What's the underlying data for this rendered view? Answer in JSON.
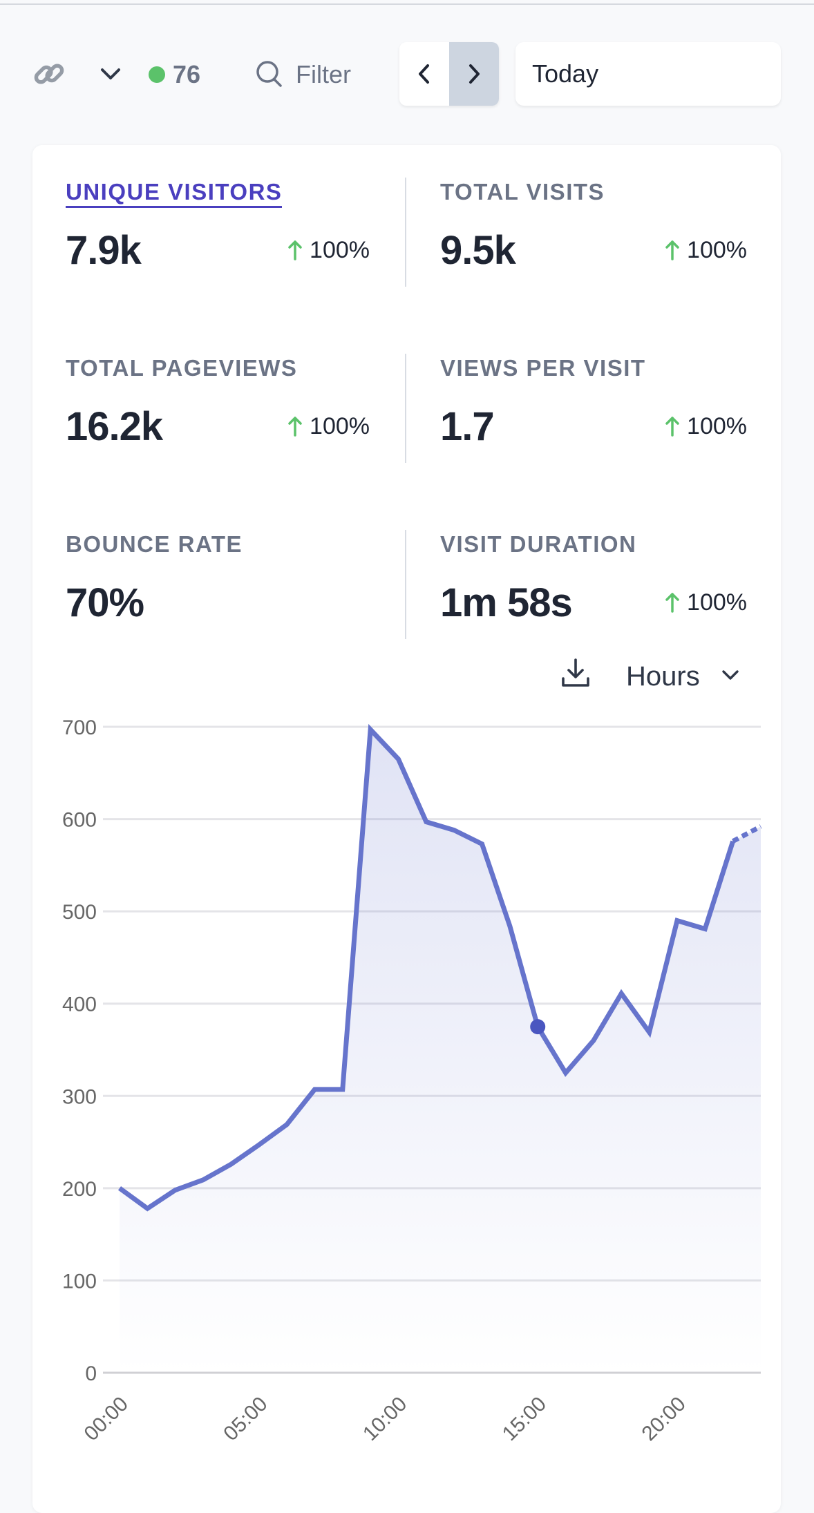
{
  "toolbar": {
    "link_icon": "link-icon",
    "site_menu_icon": "chevron-down-icon",
    "live_visitors": "76",
    "live_dot_color": "#5bc26a",
    "filter_icon": "search-icon",
    "filter_label": "Filter",
    "prev_icon": "chevron-left-icon",
    "next_icon": "chevron-right-icon",
    "date_range": "Today"
  },
  "stats": [
    {
      "label": "UNIQUE VISITORS",
      "value": "7.9k",
      "change": "100%",
      "active": true
    },
    {
      "label": "TOTAL VISITS",
      "value": "9.5k",
      "change": "100%",
      "active": false
    },
    {
      "label": "TOTAL PAGEVIEWS",
      "value": "16.2k",
      "change": "100%",
      "active": false
    },
    {
      "label": "VIEWS PER VISIT",
      "value": "1.7",
      "change": "100%",
      "active": false
    },
    {
      "label": "BOUNCE RATE",
      "value": "70%",
      "change": null,
      "active": false
    },
    {
      "label": "VISIT DURATION",
      "value": "1m 58s",
      "change": "100%",
      "active": false
    }
  ],
  "chart_controls": {
    "download_icon": "download-icon",
    "interval": "Hours",
    "interval_icon": "chevron-down-icon"
  },
  "colors": {
    "accent": "#4a3fbf",
    "line": "#6674cc",
    "up": "#5bc26a"
  },
  "chart_data": {
    "type": "area",
    "title": "",
    "xlabel": "",
    "ylabel": "",
    "x": [
      "00:00",
      "01:00",
      "02:00",
      "03:00",
      "04:00",
      "05:00",
      "06:00",
      "07:00",
      "08:00",
      "09:00",
      "10:00",
      "11:00",
      "12:00",
      "13:00",
      "14:00",
      "15:00",
      "16:00",
      "17:00",
      "18:00",
      "19:00",
      "20:00",
      "21:00",
      "22:00",
      "23:00"
    ],
    "series": [
      {
        "name": "Unique visitors",
        "values": [
          200,
          178,
          198,
          209,
          226,
          247,
          269,
          307,
          307,
          697,
          665,
          597,
          588,
          573,
          484,
          375,
          325,
          360,
          411,
          369,
          490,
          481,
          576,
          592
        ]
      }
    ],
    "highlighted_index": 15,
    "incomplete_from_index": 22,
    "ylim": [
      0,
      700
    ],
    "yticks": [
      "0",
      "100",
      "200",
      "300",
      "400",
      "500",
      "600",
      "700"
    ],
    "xtick_labels": [
      "00:00",
      "05:00",
      "10:00",
      "15:00",
      "20:00"
    ],
    "grid": true
  }
}
